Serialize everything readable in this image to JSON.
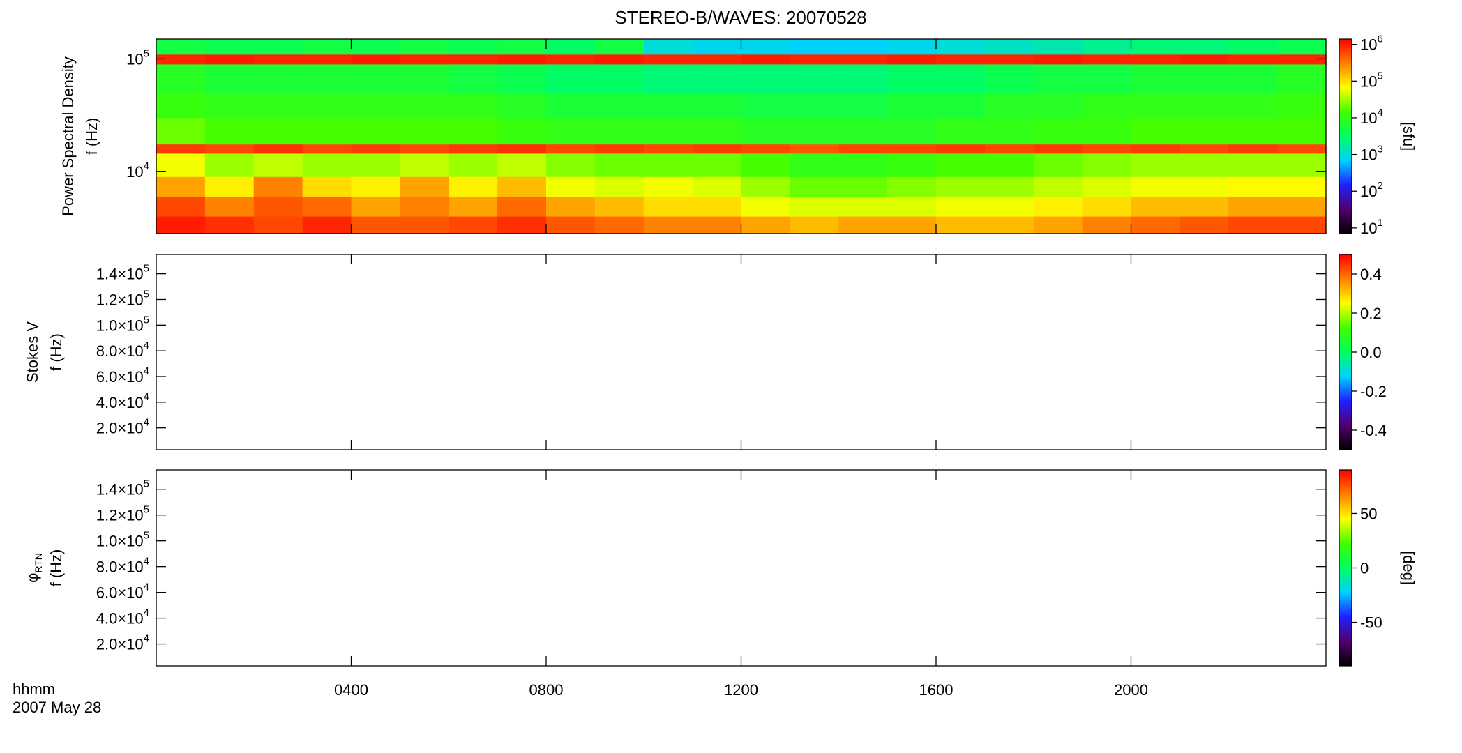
{
  "chart_data": [
    {
      "type": "heatmap",
      "title": "STEREO-B/WAVES: 20070528",
      "ylabel": [
        "Power Spectral Density",
        "f (Hz)"
      ],
      "ylog": true,
      "ylim": [
        2800,
        150000
      ],
      "yticks": [
        {
          "value": 10000,
          "label": "10",
          "exponent": "4"
        },
        {
          "value": 100000,
          "label": "10",
          "exponent": "5"
        }
      ],
      "zlog": true,
      "zlim": [
        7,
        1400000
      ],
      "zlabel": "[sfu]",
      "zticks": [
        {
          "value": 10,
          "label": "10",
          "exponent": "1"
        },
        {
          "value": 100,
          "label": "10",
          "exponent": "2"
        },
        {
          "value": 1000,
          "label": "10",
          "exponent": "3"
        },
        {
          "value": 10000,
          "label": "10",
          "exponent": "4"
        },
        {
          "value": 100000,
          "label": "10",
          "exponent": "5"
        },
        {
          "value": 1000000,
          "label": "10",
          "exponent": "6"
        }
      ],
      "colorscale": [
        "#000000",
        "#50006e",
        "#2020ff",
        "#00d0ff",
        "#00ff60",
        "#40ff00",
        "#ffff00",
        "#ff8000",
        "#ff0000"
      ],
      "x_bins": [
        0,
        1,
        2,
        3,
        4,
        5,
        6,
        7,
        8,
        9,
        10,
        11,
        12,
        13,
        14,
        15,
        16,
        17,
        18,
        19,
        20,
        21,
        22,
        23,
        24
      ],
      "y_bins": [
        2800,
        4000,
        6000,
        9000,
        14500,
        17500,
        30000,
        50000,
        90000,
        110000,
        150000
      ],
      "z": [
        [
          1000000,
          800000,
          600000,
          900000,
          500000,
          500000,
          600000,
          800000,
          500000,
          400000,
          300000,
          300000,
          200000,
          150000,
          200000,
          200000,
          150000,
          150000,
          200000,
          300000,
          400000,
          500000,
          600000,
          600000
        ],
        [
          600000,
          300000,
          500000,
          400000,
          200000,
          300000,
          200000,
          400000,
          200000,
          150000,
          100000,
          100000,
          60000,
          50000,
          50000,
          50000,
          60000,
          60000,
          80000,
          100000,
          150000,
          150000,
          200000,
          200000
        ],
        [
          200000,
          80000,
          300000,
          100000,
          80000,
          200000,
          80000,
          150000,
          60000,
          50000,
          60000,
          50000,
          30000,
          20000,
          20000,
          25000,
          30000,
          30000,
          40000,
          50000,
          60000,
          60000,
          70000,
          70000
        ],
        [
          60000,
          30000,
          40000,
          30000,
          30000,
          40000,
          30000,
          40000,
          25000,
          20000,
          20000,
          20000,
          15000,
          10000,
          10000,
          12000,
          15000,
          15000,
          20000,
          25000,
          30000,
          30000,
          30000,
          30000
        ],
        [
          700000,
          600000,
          800000,
          600000,
          700000,
          600000,
          700000,
          800000,
          600000,
          700000,
          600000,
          700000,
          600000,
          500000,
          600000,
          600000,
          700000,
          600000,
          700000,
          600000,
          700000,
          600000,
          700000,
          600000
        ],
        [
          20000,
          15000,
          15000,
          15000,
          15000,
          15000,
          15000,
          12000,
          10000,
          10000,
          10000,
          10000,
          8000,
          8000,
          8000,
          8000,
          10000,
          10000,
          12000,
          12000,
          15000,
          15000,
          15000,
          15000
        ],
        [
          12000,
          10000,
          10000,
          10000,
          10000,
          10000,
          10000,
          8000,
          6000,
          6000,
          6000,
          6000,
          5000,
          5000,
          5000,
          6000,
          6000,
          8000,
          8000,
          10000,
          10000,
          10000,
          10000,
          12000
        ],
        [
          8000,
          6000,
          6000,
          6000,
          6000,
          6000,
          5000,
          4000,
          3000,
          3000,
          2500,
          2500,
          2500,
          2500,
          2500,
          3000,
          3000,
          4000,
          5000,
          5000,
          6000,
          6000,
          6000,
          8000
        ],
        [
          900000,
          1000000,
          900000,
          900000,
          1000000,
          900000,
          900000,
          1000000,
          900000,
          1000000,
          900000,
          900000,
          1000000,
          900000,
          900000,
          1000000,
          900000,
          900000,
          1000000,
          900000,
          900000,
          1000000,
          900000,
          900000
        ],
        [
          5000,
          4000,
          4000,
          5000,
          4000,
          5000,
          4000,
          5000,
          3000,
          5000,
          1000,
          800,
          800,
          700,
          700,
          800,
          1000,
          1200,
          1500,
          2000,
          2500,
          2500,
          3000,
          4000
        ]
      ]
    },
    {
      "type": "heatmap",
      "ylabel": [
        "Stokes V",
        "f (Hz)"
      ],
      "ylog": false,
      "ylim": [
        3000,
        155000
      ],
      "yticks": [
        {
          "value": 20000,
          "label": "2.0×10",
          "exponent": "4"
        },
        {
          "value": 40000,
          "label": "4.0×10",
          "exponent": "4"
        },
        {
          "value": 60000,
          "label": "6.0×10",
          "exponent": "4"
        },
        {
          "value": 80000,
          "label": "8.0×10",
          "exponent": "4"
        },
        {
          "value": 100000,
          "label": "1.0×10",
          "exponent": "5"
        },
        {
          "value": 120000,
          "label": "1.2×10",
          "exponent": "5"
        },
        {
          "value": 140000,
          "label": "1.4×10",
          "exponent": "5"
        }
      ],
      "zlog": false,
      "zlim": [
        -0.5,
        0.5
      ],
      "zticks": [
        -0.4,
        -0.2,
        {
          "value": 0,
          "label": "0.0"
        },
        0.2,
        0.4
      ],
      "colorscale": [
        "#000000",
        "#50006e",
        "#2020ff",
        "#00d0ff",
        "#00ff60",
        "#40ff00",
        "#ffff00",
        "#ff8000",
        "#ff0000"
      ]
    },
    {
      "type": "heatmap",
      "ylabel": [
        "φ",
        "f (Hz)"
      ],
      "ylabel_subscript": "RTN",
      "ylog": false,
      "ylim": [
        3000,
        155000
      ],
      "yticks": [
        {
          "value": 20000,
          "label": "2.0×10",
          "exponent": "4"
        },
        {
          "value": 40000,
          "label": "4.0×10",
          "exponent": "4"
        },
        {
          "value": 60000,
          "label": "6.0×10",
          "exponent": "4"
        },
        {
          "value": 80000,
          "label": "8.0×10",
          "exponent": "4"
        },
        {
          "value": 100000,
          "label": "1.0×10",
          "exponent": "5"
        },
        {
          "value": 120000,
          "label": "1.2×10",
          "exponent": "5"
        },
        {
          "value": 140000,
          "label": "1.4×10",
          "exponent": "5"
        }
      ],
      "zlog": false,
      "zlim": [
        -90,
        90
      ],
      "zlabel": "[deg]",
      "zticks": [
        -50,
        0,
        50
      ],
      "colorscale": [
        "#000000",
        "#50006e",
        "#2020ff",
        "#00d0ff",
        "#00ff60",
        "#40ff00",
        "#ffff00",
        "#ff8000",
        "#ff0000"
      ],
      "xlim": [
        0,
        24
      ],
      "xticks": [
        {
          "value": 4,
          "label": "0400"
        },
        {
          "value": 8,
          "label": "0800"
        },
        {
          "value": 12,
          "label": "1200"
        },
        {
          "value": 16,
          "label": "1600"
        },
        {
          "value": 20,
          "label": "2000"
        }
      ],
      "xlabel": [
        "hhmm",
        "2007 May 28"
      ]
    }
  ]
}
